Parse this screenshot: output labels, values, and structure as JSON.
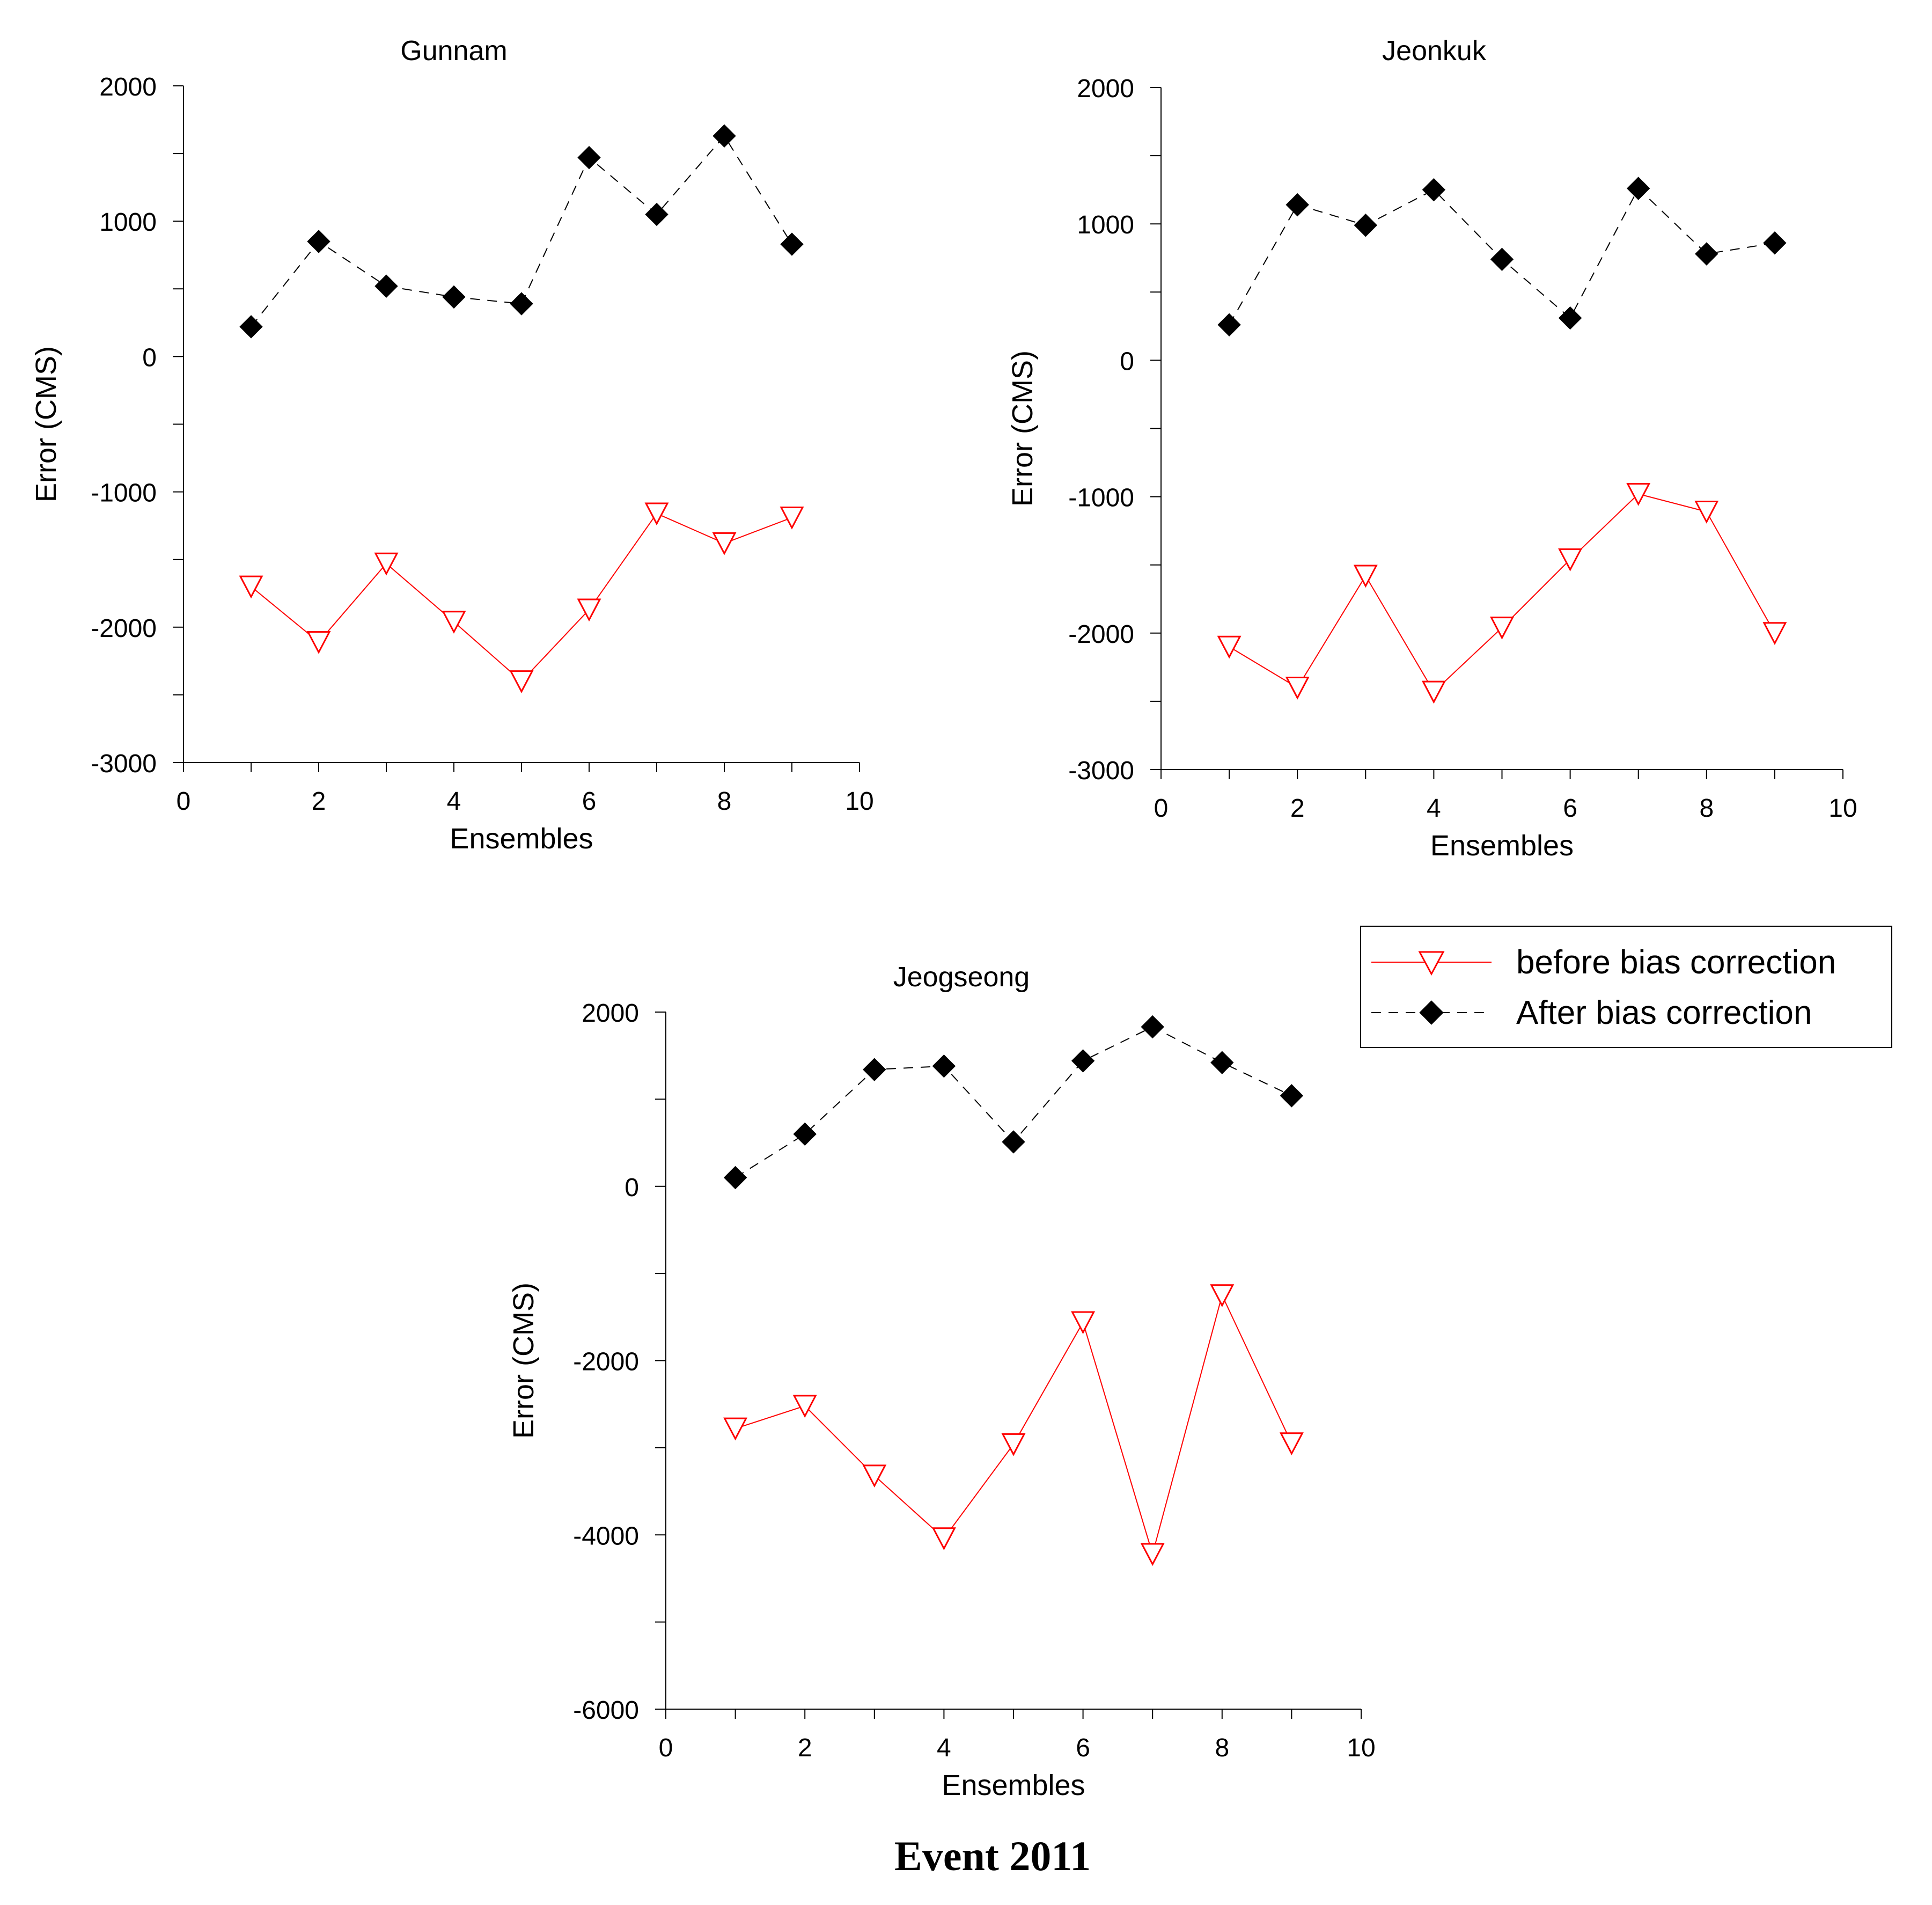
{
  "figure": {
    "caption": "Event 2011"
  },
  "colors": {
    "before": "#ff0000",
    "after": "#000000",
    "axis": "#000000"
  },
  "legend": {
    "placement": "right-of-bottom-chart",
    "items": [
      {
        "label": "before bias correction",
        "marker": "open-down-triangle",
        "line": "solid",
        "color": "#ff0000"
      },
      {
        "label": "After bias correction",
        "marker": "filled-diamond",
        "line": "dashed",
        "color": "#000000"
      }
    ]
  },
  "chart_data": [
    {
      "type": "line",
      "title": "Gunnam",
      "xlabel": "Ensembles",
      "ylabel": "Error (CMS)",
      "xlim": [
        0,
        10
      ],
      "ylim": [
        -3000,
        2000
      ],
      "xticks": [
        0,
        2,
        4,
        6,
        8,
        10
      ],
      "yticks": [
        -3000,
        -2000,
        -1000,
        0,
        1000,
        2000
      ],
      "x": [
        1,
        2,
        3,
        4,
        5,
        6,
        7,
        8,
        9
      ],
      "series": [
        {
          "name": "before bias correction",
          "values": [
            -1700,
            -2110,
            -1530,
            -1960,
            -2400,
            -1870,
            -1160,
            -1380,
            -1190
          ]
        },
        {
          "name": "After bias correction",
          "values": [
            220,
            850,
            520,
            440,
            390,
            1470,
            1050,
            1630,
            830
          ]
        }
      ],
      "grid": false
    },
    {
      "type": "line",
      "title": "Jeonkuk",
      "xlabel": "Ensembles",
      "ylabel": "Error (CMS)",
      "xlim": [
        0,
        10
      ],
      "ylim": [
        -3000,
        2000
      ],
      "xticks": [
        0,
        2,
        4,
        6,
        8,
        10
      ],
      "yticks": [
        -3000,
        -2000,
        -1000,
        0,
        1000,
        2000
      ],
      "x": [
        1,
        2,
        3,
        4,
        5,
        6,
        7,
        8,
        9
      ],
      "series": [
        {
          "name": "before bias correction",
          "values": [
            -2100,
            -2400,
            -1580,
            -2430,
            -1960,
            -1460,
            -980,
            -1110,
            -2000
          ]
        },
        {
          "name": "After bias correction",
          "values": [
            260,
            1140,
            990,
            1250,
            740,
            310,
            1260,
            780,
            860
          ]
        }
      ],
      "grid": false
    },
    {
      "type": "line",
      "title": "Jeogseong",
      "xlabel": "Ensembles",
      "ylabel": "Error (CMS)",
      "xlim": [
        0,
        10
      ],
      "ylim": [
        -6000,
        2000
      ],
      "xticks": [
        0,
        2,
        4,
        6,
        8,
        10
      ],
      "yticks": [
        -6000,
        -4000,
        -2000,
        0,
        2000
      ],
      "x": [
        1,
        2,
        3,
        4,
        5,
        6,
        7,
        8,
        9
      ],
      "series": [
        {
          "name": "before bias correction",
          "values": [
            -2780,
            -2520,
            -3320,
            -4040,
            -2960,
            -1560,
            -4220,
            -1250,
            -2950
          ]
        },
        {
          "name": "After bias correction",
          "values": [
            100,
            600,
            1340,
            1380,
            510,
            1440,
            1830,
            1420,
            1040
          ]
        }
      ],
      "grid": false
    }
  ]
}
